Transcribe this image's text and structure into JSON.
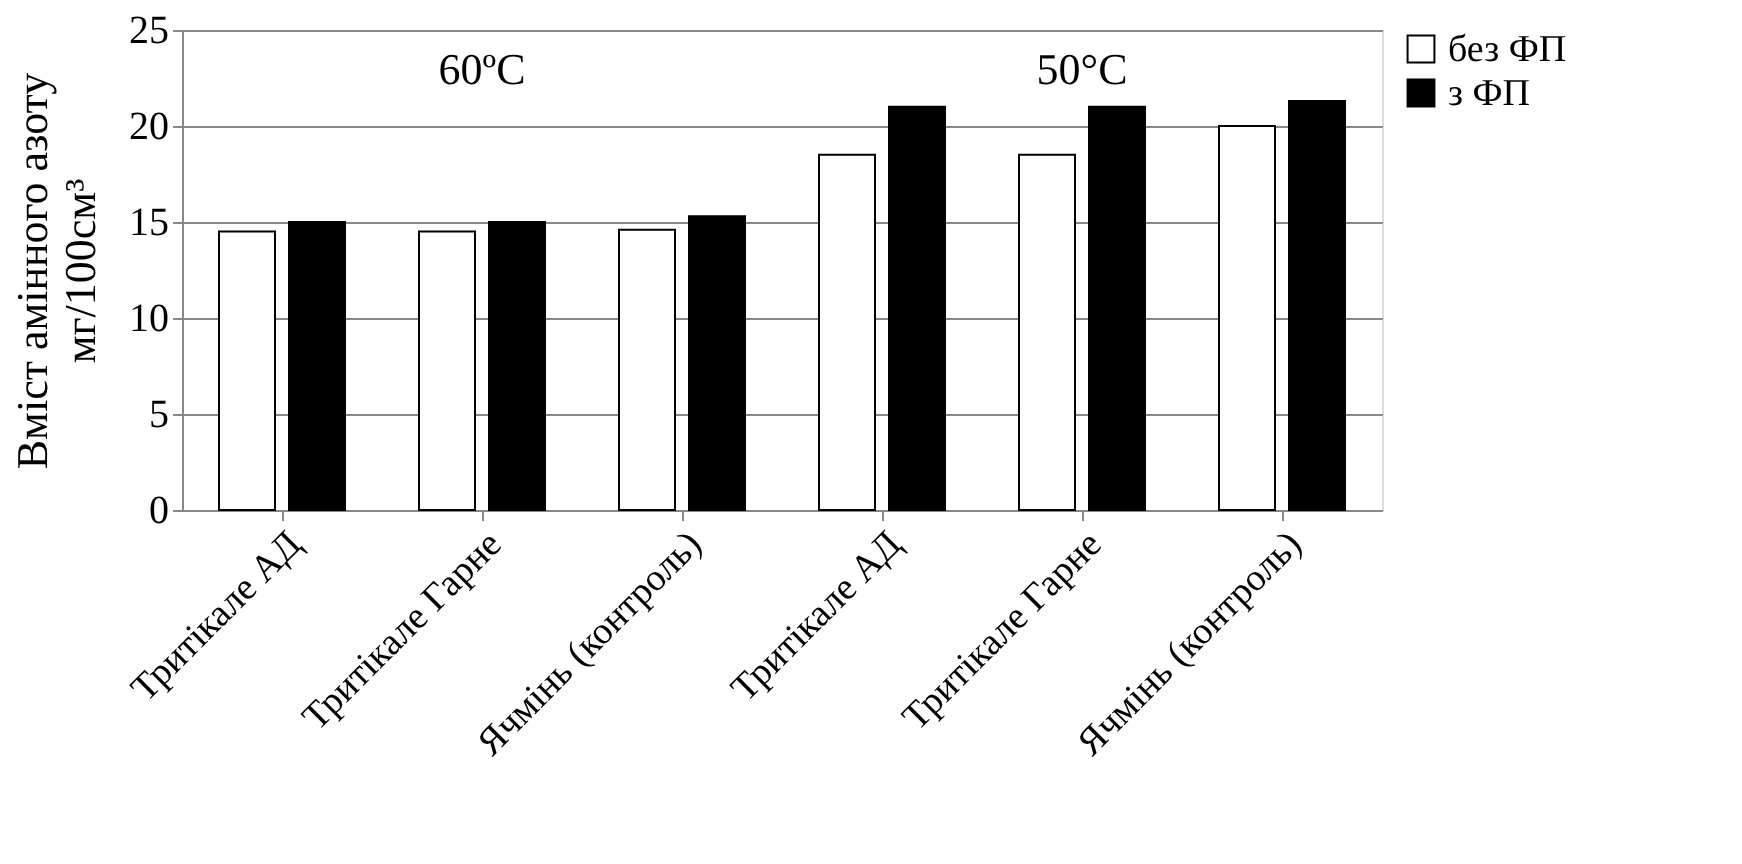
{
  "chart_data": {
    "type": "bar",
    "ylabel": "Вміст амінного азоту\nмг/100см³",
    "categories": [
      "Тритікале АД",
      "Тритікале Гарне",
      "Ячмінь (контроль)",
      "Тритікале АД",
      "Тритікале Гарне",
      "Ячмінь (контроль)"
    ],
    "series": [
      {
        "name": "без ФП",
        "color": "#ffffff",
        "values": [
          14.5,
          14.5,
          14.6,
          18.5,
          18.5,
          20.0
        ]
      },
      {
        "name": "з ФП",
        "color": "#000000",
        "values": [
          15.0,
          15.0,
          15.3,
          21.0,
          21.0,
          21.3
        ]
      }
    ],
    "annotations": [
      "60ºC",
      "50°C"
    ],
    "ylim": [
      0,
      25
    ],
    "yticks": [
      0,
      5,
      10,
      15,
      20,
      25
    ],
    "grid": "y",
    "legend": "right"
  }
}
